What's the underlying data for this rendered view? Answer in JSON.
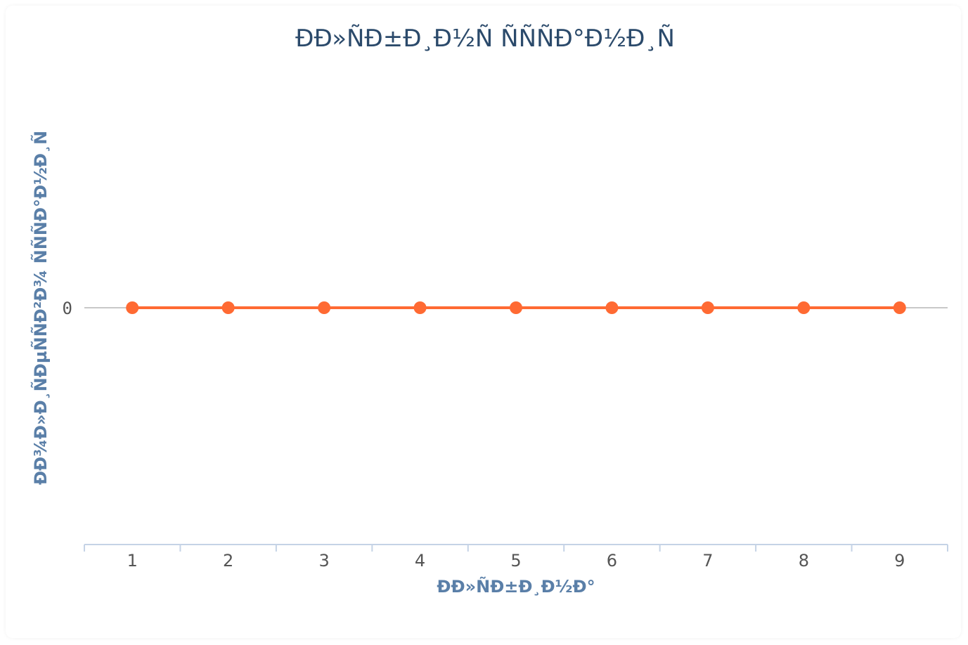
{
  "chart_data": {
    "type": "line",
    "title": "ÐÐ»ÑÐ±Ð¸Ð½Ñ ÑÑÑÐ°Ð½Ð¸Ñ",
    "xlabel": "ÐÐ»ÑÐ±Ð¸Ð½Ð°",
    "ylabel": "ÐÐ¾Ð»Ð¸ÑÐµÑÑÐ²Ð¾ ÑÑÑÐ°Ð½Ð¸Ñ",
    "categories": [
      "1",
      "2",
      "3",
      "4",
      "5",
      "6",
      "7",
      "8",
      "9"
    ],
    "y_ticks": [
      "0"
    ],
    "series": [
      {
        "values": [
          0,
          0,
          0,
          0,
          0,
          0,
          0,
          0,
          0
        ],
        "color": "#ff6a33"
      }
    ],
    "grid": true,
    "axis_color": "#c5d3e6",
    "zero_line_color": "#c8c8c8"
  }
}
